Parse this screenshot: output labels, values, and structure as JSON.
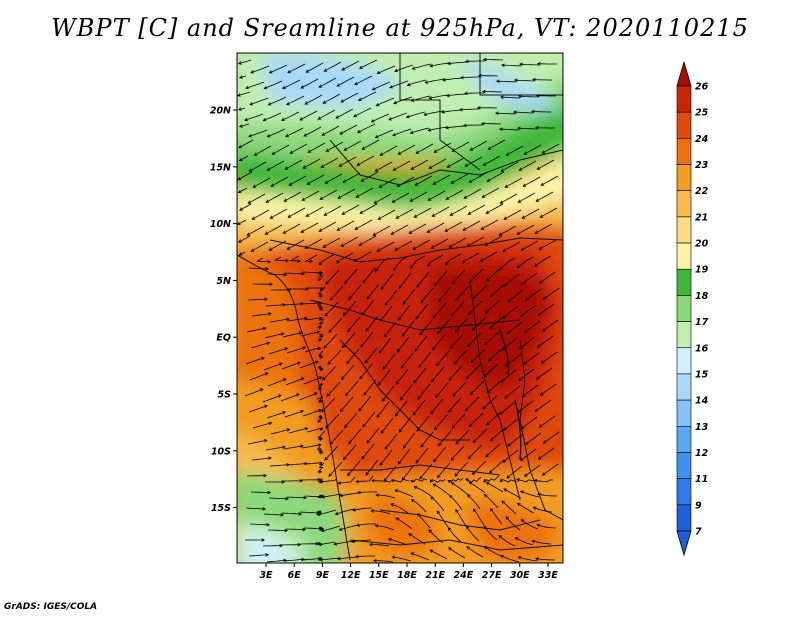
{
  "title": "WBPT [C] and Sreamline at 925hPa, VT: 2020110215",
  "credit": "GrADS: IGES/COLA",
  "map": {
    "lon_labels": [
      "3E",
      "6E",
      "9E",
      "12E",
      "15E",
      "18E",
      "21E",
      "24E",
      "27E",
      "30E",
      "33E"
    ],
    "lat_labels": [
      "20N",
      "15N",
      "10N",
      "5N",
      "EQ",
      "5S",
      "10S",
      "15S"
    ]
  },
  "colorbar": {
    "labels": [
      "7",
      "9",
      "11",
      "12",
      "13",
      "14",
      "15",
      "16",
      "17",
      "18",
      "19",
      "20",
      "21",
      "22",
      "23",
      "24",
      "25",
      "26"
    ],
    "colors": [
      "#1f5fd8",
      "#2f7ce8",
      "#3a93ee",
      "#58a8f2",
      "#84c2f6",
      "#aad8fa",
      "#d2f0fb",
      "#bfeeb0",
      "#8cd87c",
      "#3fb83a",
      "#faf4a8",
      "#f9dc84",
      "#f6bc50",
      "#f29c22",
      "#ec7210",
      "#e04a0a",
      "#c82408",
      "#a80e06"
    ]
  }
}
